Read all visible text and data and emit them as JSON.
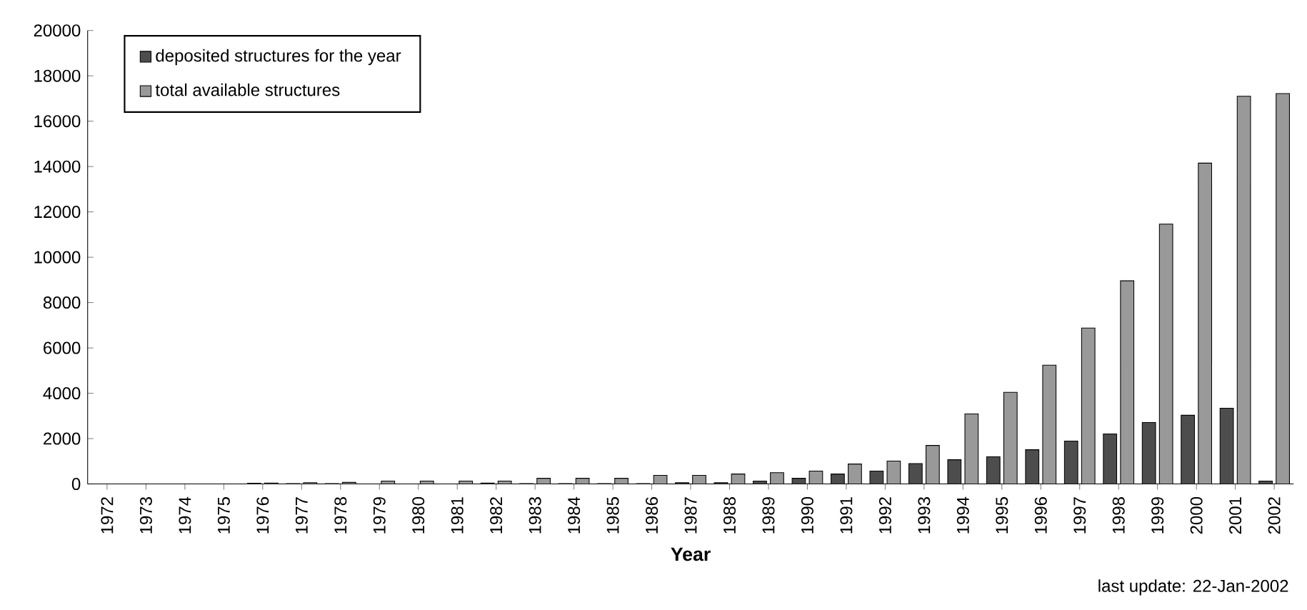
{
  "chart_data": {
    "type": "bar",
    "xlabel": "Year",
    "categories": [
      "1972",
      "1973",
      "1974",
      "1975",
      "1976",
      "1977",
      "1978",
      "1979",
      "1980",
      "1981",
      "1982",
      "1983",
      "1984",
      "1985",
      "1986",
      "1987",
      "1988",
      "1989",
      "1990",
      "1991",
      "1992",
      "1993",
      "1994",
      "1995",
      "1996",
      "1997",
      "1998",
      "1999",
      "2000",
      "2001",
      "2002"
    ],
    "series": [
      {
        "name": "deposited structures for the year",
        "color": "#4d4d4d",
        "values": [
          null,
          null,
          null,
          null,
          30,
          20,
          20,
          null,
          null,
          null,
          40,
          20,
          20,
          20,
          20,
          60,
          60,
          130,
          250,
          440,
          570,
          900,
          1070,
          1200,
          1510,
          1890,
          2210,
          2710,
          3030,
          3340,
          130
        ]
      },
      {
        "name": "total available structures",
        "color": "#999999",
        "values": [
          null,
          null,
          null,
          null,
          40,
          60,
          70,
          130,
          130,
          130,
          130,
          250,
          250,
          250,
          380,
          380,
          440,
          500,
          570,
          880,
          1010,
          1700,
          3090,
          4040,
          5240,
          6880,
          8960,
          11460,
          14150,
          17100,
          17220
        ]
      }
    ],
    "ylim": [
      0,
      20000
    ],
    "yticks": [
      0,
      2000,
      4000,
      6000,
      8000,
      10000,
      12000,
      14000,
      16000,
      18000,
      20000
    ],
    "legend": "top left",
    "grid": false,
    "annotations": [
      "last update: 22-Jan-2002"
    ]
  }
}
